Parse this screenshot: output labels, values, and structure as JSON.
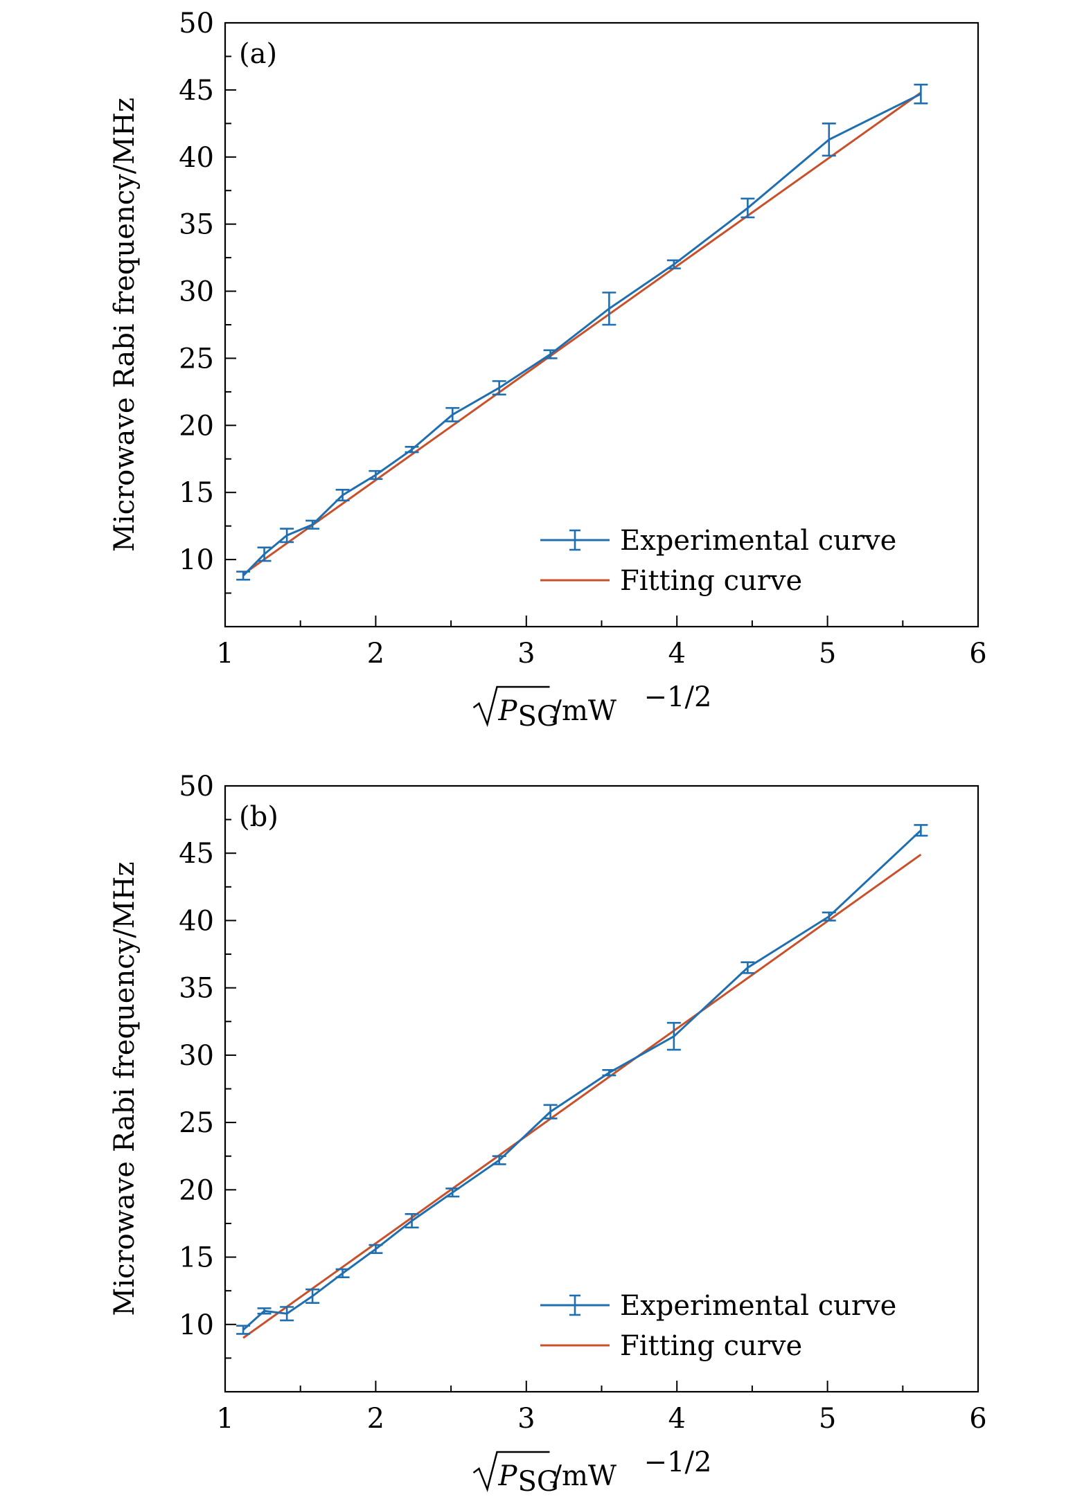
{
  "chart_data": [
    {
      "type": "line",
      "panel_label": "(a)",
      "xlabel_unit": "/mW",
      "xlabel_sub": "SG",
      "xlabel_var": "P",
      "xlabel_exp": "−1/2",
      "ylabel": "Microwave Rabi frequency/MHz",
      "xlim": [
        1,
        6
      ],
      "ylim": [
        5,
        50
      ],
      "xticks": [
        "1",
        "2",
        "3",
        "4",
        "5",
        "6"
      ],
      "yticks": [
        "10",
        "15",
        "20",
        "25",
        "30",
        "35",
        "40",
        "45",
        "50"
      ],
      "legend": {
        "placement": "lower-right",
        "entries": [
          "Experimental curve",
          "Fitting curve"
        ]
      },
      "colors": {
        "experimental": "#1f6fb0",
        "fit": "#c8502a"
      },
      "series": [
        {
          "name": "Experimental curve",
          "x": [
            1.12,
            1.26,
            1.41,
            1.58,
            1.78,
            2.0,
            2.24,
            2.51,
            2.82,
            3.16,
            3.55,
            3.98,
            4.47,
            5.01,
            5.62
          ],
          "y": [
            8.8,
            10.4,
            11.8,
            12.6,
            14.8,
            16.3,
            18.2,
            20.8,
            22.8,
            25.3,
            28.7,
            32.0,
            36.2,
            41.3,
            44.7
          ],
          "err": [
            0.3,
            0.5,
            0.5,
            0.3,
            0.4,
            0.3,
            0.2,
            0.5,
            0.5,
            0.3,
            1.2,
            0.3,
            0.7,
            1.2,
            0.7
          ]
        },
        {
          "name": "Fitting curve",
          "x": [
            1.12,
            5.62
          ],
          "y": [
            8.9,
            44.8
          ]
        }
      ]
    },
    {
      "type": "line",
      "panel_label": "(b)",
      "xlabel_unit": "/mW",
      "xlabel_sub": "SG",
      "xlabel_var": "P",
      "xlabel_exp": "−1/2",
      "ylabel": "Microwave Rabi frequency/MHz",
      "xlim": [
        1,
        6
      ],
      "ylim": [
        5,
        50
      ],
      "xticks": [
        "1",
        "2",
        "3",
        "4",
        "5",
        "6"
      ],
      "yticks": [
        "10",
        "15",
        "20",
        "25",
        "30",
        "35",
        "40",
        "45",
        "50"
      ],
      "legend": {
        "placement": "lower-right",
        "entries": [
          "Experimental curve",
          "Fitting curve"
        ]
      },
      "colors": {
        "experimental": "#1f6fb0",
        "fit": "#c8502a"
      },
      "series": [
        {
          "name": "Experimental curve",
          "x": [
            1.12,
            1.26,
            1.41,
            1.58,
            1.78,
            2.0,
            2.24,
            2.51,
            2.82,
            3.16,
            3.55,
            3.98,
            4.47,
            5.01,
            5.62
          ],
          "y": [
            9.6,
            11.0,
            10.8,
            12.1,
            13.8,
            15.6,
            17.7,
            19.8,
            22.2,
            25.8,
            28.7,
            31.4,
            36.5,
            40.3,
            46.7
          ],
          "err": [
            0.3,
            0.2,
            0.5,
            0.5,
            0.3,
            0.3,
            0.5,
            0.3,
            0.3,
            0.5,
            0.2,
            1.0,
            0.4,
            0.3,
            0.4
          ]
        },
        {
          "name": "Fitting curve",
          "x": [
            1.12,
            5.62
          ],
          "y": [
            9.0,
            44.9
          ]
        }
      ]
    }
  ]
}
